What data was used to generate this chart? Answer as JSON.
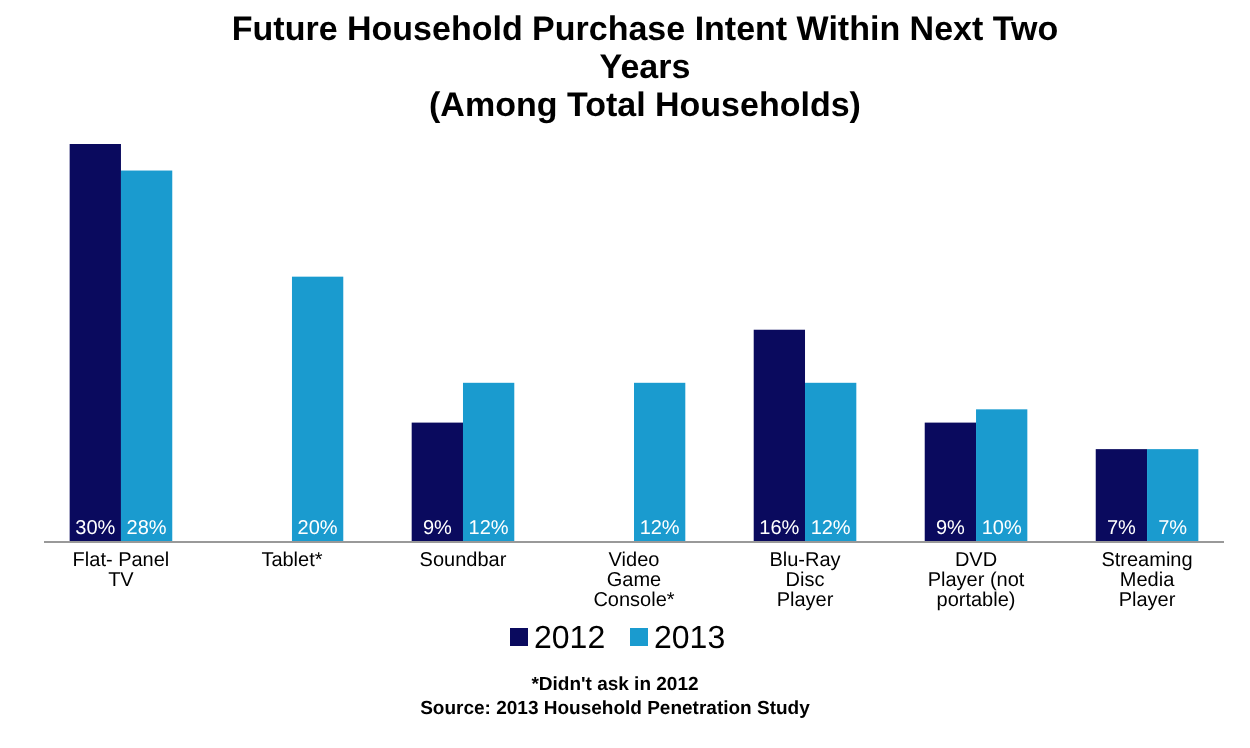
{
  "chart_data": {
    "type": "bar",
    "title": "Future Household Purchase Intent Within Next Two\nYears\n(Among Total Households)",
    "categories": [
      "Flat- Panel\nTV",
      "Tablet*",
      "Soundbar",
      "Video\nGame\nConsole*",
      "Blu-Ray\nDisc\nPlayer",
      "DVD\nPlayer (not\nportable)",
      "Streaming\nMedia\nPlayer"
    ],
    "series": [
      {
        "name": "2012",
        "color": "#0a0a5e",
        "values": [
          30,
          null,
          9,
          null,
          16,
          9,
          7
        ],
        "value_labels": [
          "30%",
          null,
          "9%",
          null,
          "16%",
          "9%",
          "7%"
        ]
      },
      {
        "name": "2013",
        "color": "#1a9bcf",
        "values": [
          28,
          20,
          12,
          12,
          12,
          10,
          7
        ],
        "value_labels": [
          "28%",
          "20%",
          "12%",
          "12%",
          "12%",
          "10%",
          "7%"
        ]
      }
    ],
    "ylim": [
      0,
      30
    ],
    "legend": "bottom",
    "grid": false,
    "annotations": [
      "*Didn't ask in 2012",
      "Source: 2013 Household Penetration Study"
    ]
  }
}
